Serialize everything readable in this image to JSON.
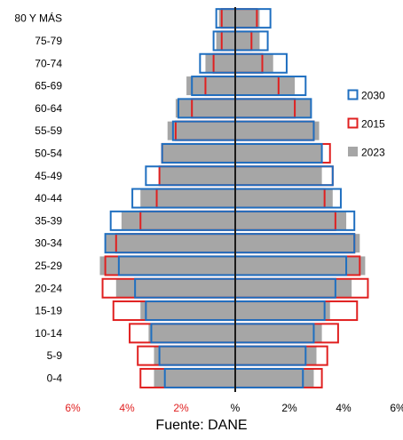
{
  "chart_data": {
    "type": "population-pyramid",
    "categories": [
      "0-4",
      "5-9",
      "10-14",
      "15-19",
      "20-24",
      "25-29",
      "30-34",
      "35-39",
      "40-44",
      "45-49",
      "50-54",
      "55-59",
      "60-64",
      "65-69",
      "70-74",
      "75-79",
      "80 Y MÁS"
    ],
    "x_ticks": [
      "6%",
      "4%",
      "2%",
      "%",
      "2%",
      "4%",
      "6%"
    ],
    "x_tick_colors": [
      "#e02020",
      "#e02020",
      "#e02020",
      "#000000",
      "#000000",
      "#000000",
      "#000000"
    ],
    "xlim": [
      -6,
      6
    ],
    "series": [
      {
        "name": "2023",
        "style": "filled-bar",
        "color": "#a6a6a6",
        "male": [
          3.0,
          3.0,
          3.2,
          3.5,
          4.4,
          5.0,
          4.8,
          4.2,
          3.5,
          2.8,
          2.7,
          2.5,
          2.2,
          1.8,
          1.1,
          0.7,
          0.6
        ],
        "female": [
          2.9,
          3.0,
          3.2,
          3.5,
          4.3,
          4.8,
          4.6,
          4.1,
          3.6,
          3.2,
          3.2,
          3.1,
          2.8,
          2.2,
          1.4,
          0.9,
          0.9
        ]
      },
      {
        "name": "2015",
        "style": "outline",
        "color": "#e02020",
        "male": [
          3.5,
          3.6,
          3.9,
          4.5,
          4.9,
          4.8,
          4.4,
          3.5,
          2.9,
          2.8,
          2.7,
          2.2,
          1.6,
          1.1,
          0.8,
          0.5,
          0.5
        ],
        "female": [
          3.2,
          3.4,
          3.8,
          4.5,
          4.9,
          4.6,
          4.4,
          3.7,
          3.3,
          3.6,
          3.5,
          2.9,
          2.2,
          1.6,
          1.0,
          0.6,
          0.8
        ]
      },
      {
        "name": "2030",
        "style": "outline",
        "color": "#1f6fc0",
        "male": [
          2.6,
          2.8,
          3.1,
          3.3,
          3.7,
          4.3,
          4.8,
          4.6,
          3.8,
          3.3,
          2.7,
          2.3,
          2.1,
          1.6,
          1.3,
          0.8,
          0.7
        ],
        "female": [
          2.5,
          2.6,
          2.9,
          3.3,
          3.7,
          4.1,
          4.4,
          4.4,
          3.9,
          3.6,
          3.2,
          2.9,
          2.8,
          2.6,
          1.9,
          1.2,
          1.3
        ]
      }
    ],
    "legend": {
      "position": "right",
      "order": [
        "2030",
        "2015",
        "2023"
      ]
    },
    "source": "Fuente: DANE"
  }
}
